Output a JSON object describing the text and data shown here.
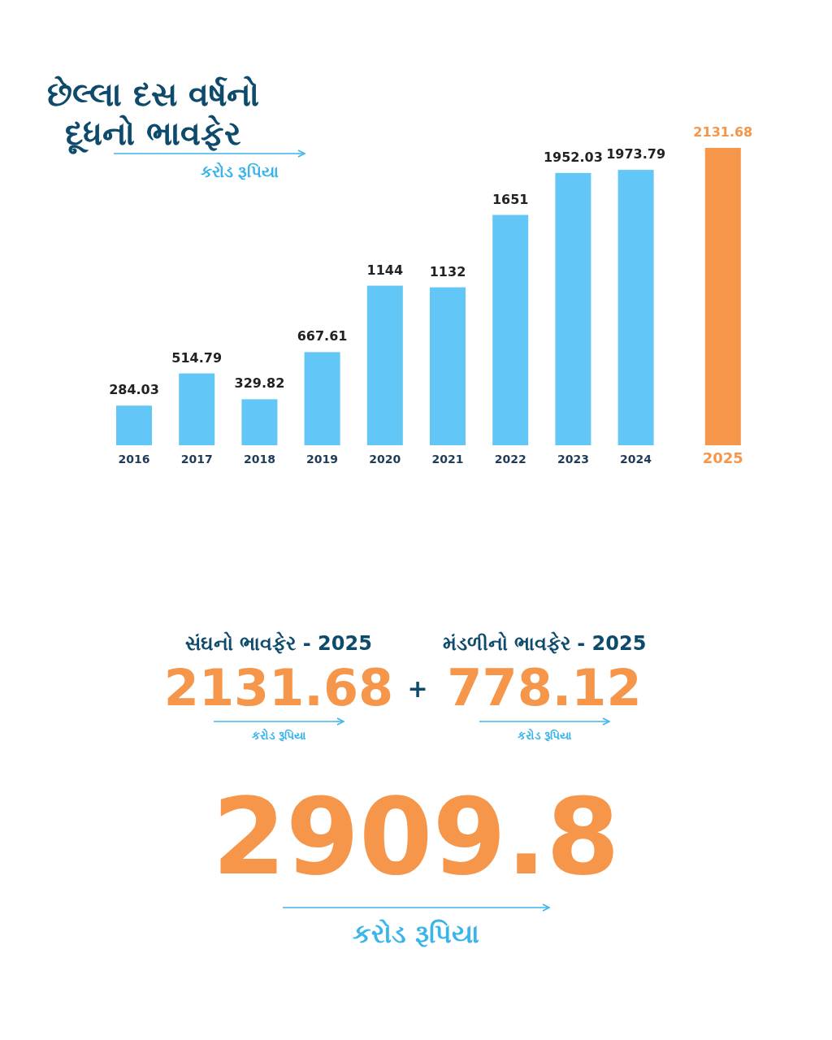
{
  "chart_data": [
    {
      "type": "bar",
      "title": "છેલ્લા દસ વર્ષનો દૂધનો ભાવફેર",
      "subtitle": "કરોડ રૂપિયા",
      "categories": [
        "2016",
        "2017",
        "2018",
        "2019",
        "2020",
        "2021",
        "2022",
        "2023",
        "2024",
        "2025"
      ],
      "values": [
        284.03,
        514.79,
        329.82,
        667.61,
        1144,
        1132,
        1651,
        1952.03,
        1973.79,
        2131.68
      ],
      "colors": [
        "#62c6f7",
        "#62c6f7",
        "#62c6f7",
        "#62c6f7",
        "#62c6f7",
        "#62c6f7",
        "#62c6f7",
        "#62c6f7",
        "#62c6f7",
        "#f5964a"
      ],
      "data_labels": true
    },
    {
      "type": "other",
      "categories": [
        "સંઘનો ભાવફેર - 2025",
        "મંડળીનો ભાવફેર - 2025"
      ],
      "values": [
        2131.68,
        778.12
      ],
      "colors": [
        "#f5964a",
        "#f5964a"
      ],
      "data_labels": true,
      "totals": [
        "2909.8"
      ],
      "annotations": [
        "+",
        "કરોડ રૂપિયા",
        "કરોડ રૂપિયા",
        "કરોડ રૂપિયા"
      ]
    }
  ]
}
